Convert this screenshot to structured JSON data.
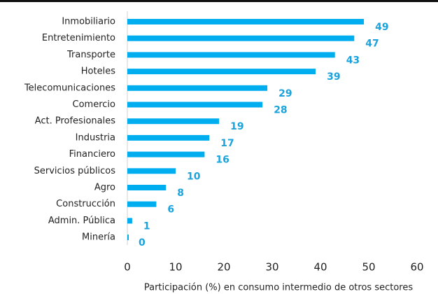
{
  "chart_data": {
    "type": "bar",
    "orientation": "horizontal",
    "categories": [
      "Inmobiliario",
      "Entretenimiento",
      "Transporte",
      "Hoteles",
      "Telecomunicaciones",
      "Comercio",
      "Act. Profesionales",
      "Industria",
      "Financiero",
      "Servicios públicos",
      "Agro",
      "Construcción",
      "Admin. Pública",
      "Minería"
    ],
    "values": [
      49,
      47,
      43,
      39,
      29,
      28,
      19,
      17,
      16,
      10,
      8,
      6,
      1,
      0
    ],
    "color": "#00aeef",
    "label_color": "#1aa3dc",
    "x_label": "Participación (%) en consumo intermedio de otros sectores",
    "xlim": [
      0,
      60
    ],
    "xticks": [
      0,
      10,
      20,
      30,
      40,
      50,
      60
    ],
    "grid": false
  }
}
